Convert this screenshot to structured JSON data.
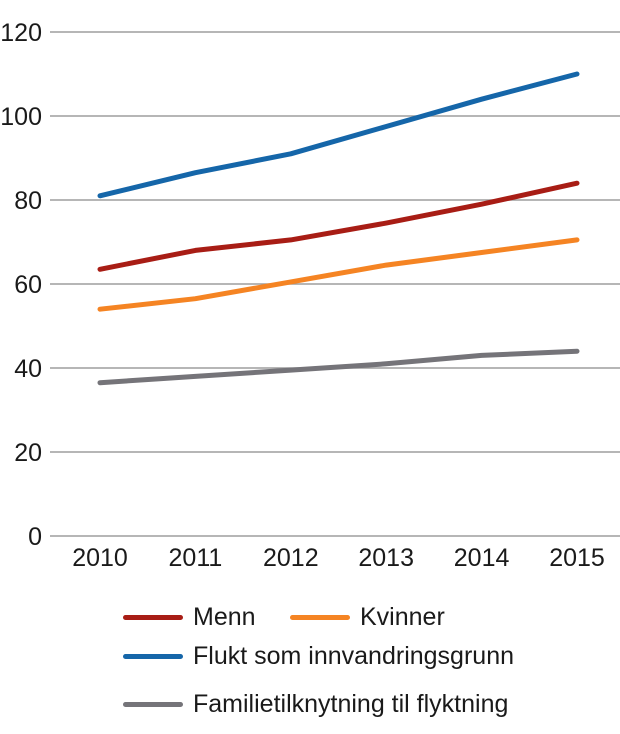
{
  "chart_data": {
    "type": "line",
    "x": [
      "2010",
      "2011",
      "2012",
      "2013",
      "2014",
      "2015"
    ],
    "series": [
      {
        "name": "Menn",
        "color": "#A81D15",
        "values": [
          63.5,
          68,
          70.5,
          74.5,
          79,
          84
        ]
      },
      {
        "name": "Kvinner",
        "color": "#F58423",
        "values": [
          54,
          56.5,
          60.5,
          64.5,
          67.5,
          70.5
        ]
      },
      {
        "name": "Flukt som innvandringsgrunn",
        "color": "#1566A9",
        "values": [
          81,
          86.5,
          91,
          97.5,
          104,
          110
        ]
      },
      {
        "name": "Familietilknytning til flyktning",
        "color": "#757479",
        "values": [
          36.5,
          38,
          39.5,
          41,
          43,
          44
        ]
      }
    ],
    "title": "",
    "xlabel": "",
    "ylabel": "",
    "ylim": [
      0,
      120
    ],
    "yticks": [
      0,
      20,
      40,
      60,
      80,
      100,
      120
    ],
    "grid": true,
    "legend_position": "bottom",
    "legend_rows": [
      [
        0,
        1
      ],
      [
        2
      ],
      [
        3
      ]
    ],
    "gridline_color": "#9E9E9E",
    "text_color": "#1A1A1A",
    "background": "#FFFFFF",
    "line_width": 5
  }
}
